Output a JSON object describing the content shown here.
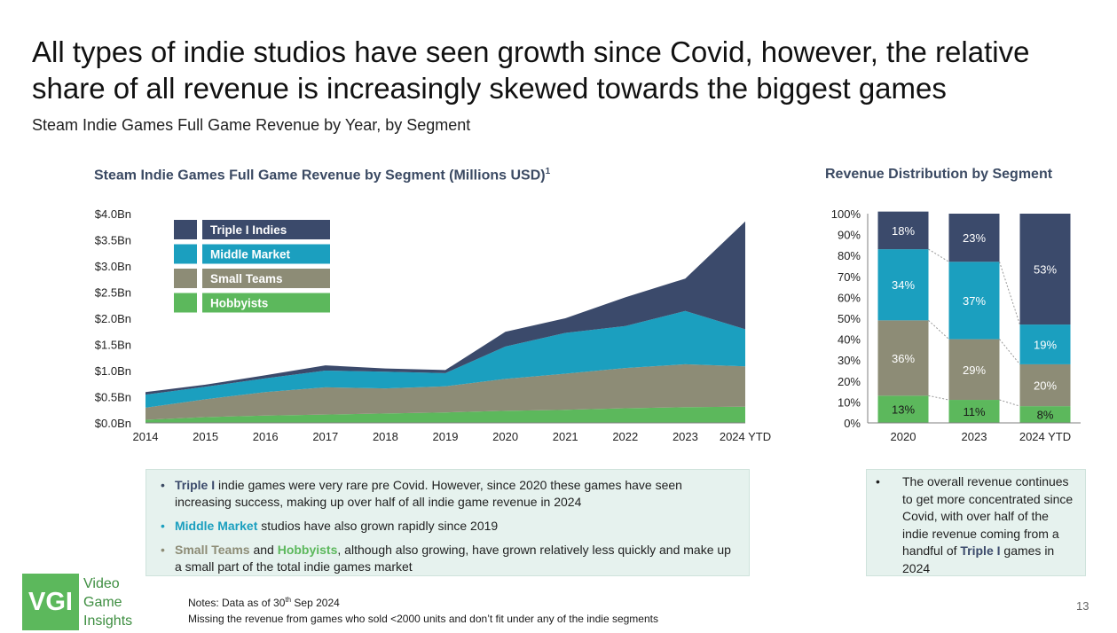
{
  "slide": {
    "title": "All types of indie studios have seen growth since Covid, however, the relative share of all revenue is increasingly skewed towards the biggest games",
    "subtitle": "Steam Indie Games Full Game Revenue by Year, by Segment",
    "page_number": "13"
  },
  "left_chart_title": "Steam Indie Games Full Game Revenue by Segment (Millions USD)",
  "left_chart_title_sup": "1",
  "right_chart_title": "Revenue Distribution by Segment",
  "colors": {
    "triple_i": "#3b4a6b",
    "middle_market": "#1b9fbf",
    "small_teams": "#8d8c76",
    "hobbyists": "#5cb85c"
  },
  "chart_data": [
    {
      "type": "area",
      "stacked": true,
      "title": "Steam Indie Games Full Game Revenue by Segment (Millions USD)",
      "x": [
        "2014",
        "2015",
        "2016",
        "2017",
        "2018",
        "2019",
        "2020",
        "2021",
        "2022",
        "2023",
        "2024 YTD"
      ],
      "y_tick_labels": [
        "$0.0Bn",
        "$0.5Bn",
        "$1.0Bn",
        "$1.5Bn",
        "$2.0Bn",
        "$2.5Bn",
        "$3.0Bn",
        "$3.5Bn",
        "$4.0Bn"
      ],
      "ylim": [
        0,
        4.0
      ],
      "legend_position": "top-left",
      "series": [
        {
          "name": "Hobbyists",
          "values": [
            0.06,
            0.11,
            0.14,
            0.16,
            0.18,
            0.2,
            0.23,
            0.25,
            0.28,
            0.3,
            0.31
          ]
        },
        {
          "name": "Small Teams",
          "values": [
            0.23,
            0.34,
            0.45,
            0.52,
            0.48,
            0.5,
            0.61,
            0.69,
            0.77,
            0.82,
            0.77
          ]
        },
        {
          "name": "Middle Market",
          "values": [
            0.25,
            0.24,
            0.26,
            0.32,
            0.32,
            0.25,
            0.62,
            0.78,
            0.8,
            1.02,
            0.71
          ]
        },
        {
          "name": "Triple I Indies",
          "values": [
            0.05,
            0.04,
            0.06,
            0.1,
            0.06,
            0.06,
            0.28,
            0.28,
            0.55,
            0.62,
            2.06
          ]
        }
      ]
    },
    {
      "type": "bar",
      "stacked": true,
      "percent": true,
      "title": "Revenue Distribution by Segment",
      "categories": [
        "2020",
        "2023",
        "2024 YTD"
      ],
      "y_tick_labels": [
        "0%",
        "10%",
        "20%",
        "30%",
        "40%",
        "50%",
        "60%",
        "70%",
        "80%",
        "90%",
        "100%"
      ],
      "ylim": [
        0,
        100
      ],
      "series": [
        {
          "name": "Hobbyists",
          "values": [
            13,
            11,
            8
          ],
          "labels": [
            "13%",
            "11%",
            "8%"
          ]
        },
        {
          "name": "Small Teams",
          "values": [
            36,
            29,
            20
          ],
          "labels": [
            "36%",
            "29%",
            "20%"
          ]
        },
        {
          "name": "Middle Market",
          "values": [
            34,
            37,
            19
          ],
          "labels": [
            "34%",
            "37%",
            "19%"
          ]
        },
        {
          "name": "Triple I Indies",
          "values": [
            18,
            23,
            53
          ],
          "labels": [
            "18%",
            "23%",
            "53%"
          ]
        }
      ]
    }
  ],
  "left_box": {
    "b1": {
      "kw": "Triple I",
      "text": " indie games were very rare pre Covid. However, since 2020 these games have seen increasing success, making up over half of all indie game revenue in 2024"
    },
    "b2": {
      "kw": "Middle Market",
      "text": " studios have also grown rapidly since 2019"
    },
    "b3": {
      "kw1": "Small Teams",
      "mid": " and ",
      "kw2": "Hobbyists",
      "text": ", although also growing, have grown relatively less quickly and make up a small part of the total indie games market"
    }
  },
  "right_box": {
    "text_before": "The overall revenue continues to get more concentrated since Covid, with over half of the indie revenue coming from a handful of ",
    "kw": "Triple I",
    "text_after": " games in 2024"
  },
  "logo": {
    "abbr": "VGI",
    "line1": "Video",
    "line2": "Game",
    "line3": "Insights"
  },
  "notes": {
    "line1_before": "Notes: Data as of 30",
    "line1_sup": "th",
    "line1_after": " Sep 2024",
    "line2": "Missing the revenue from games who sold <2000 units and don’t fit under any of the indie segments"
  }
}
